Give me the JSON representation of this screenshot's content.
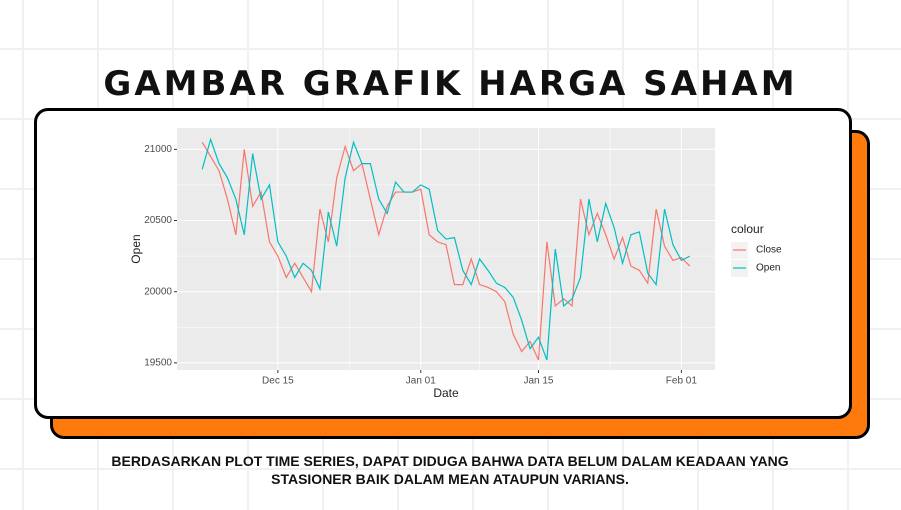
{
  "title": "GAMBAR GRAFIK HARGA SAHAM",
  "caption": "BERDASARKAN PLOT TIME SERIES, DAPAT DIDUGA BAHWA DATA BELUM DALAM KEADAAN YANG STASIONER BAIK DALAM MEAN ATAUPUN VARIANS.",
  "chart_data": {
    "type": "line",
    "x_label": "Date",
    "y_label": "Open",
    "legend_title": "colour",
    "x": [
      "Dec 06",
      "Dec 07",
      "Dec 08",
      "Dec 09",
      "Dec 10",
      "Dec 11",
      "Dec 12",
      "Dec 13",
      "Dec 14",
      "Dec 15",
      "Dec 16",
      "Dec 17",
      "Dec 18",
      "Dec 19",
      "Dec 20",
      "Dec 21",
      "Dec 22",
      "Dec 23",
      "Dec 24",
      "Dec 25",
      "Dec 26",
      "Dec 27",
      "Dec 28",
      "Dec 29",
      "Dec 30",
      "Dec 31",
      "Jan 01",
      "Jan 02",
      "Jan 03",
      "Jan 04",
      "Jan 05",
      "Jan 06",
      "Jan 07",
      "Jan 08",
      "Jan 09",
      "Jan 10",
      "Jan 11",
      "Jan 12",
      "Jan 13",
      "Jan 14",
      "Jan 15",
      "Jan 16",
      "Jan 17",
      "Jan 18",
      "Jan 19",
      "Jan 20",
      "Jan 21",
      "Jan 22",
      "Jan 23",
      "Jan 24",
      "Jan 25",
      "Jan 26",
      "Jan 27",
      "Jan 28",
      "Jan 29",
      "Jan 30",
      "Jan 31",
      "Feb 01",
      "Feb 02"
    ],
    "series": [
      {
        "name": "Close",
        "color": "#F8766D",
        "values": [
          21050,
          20950,
          20850,
          20650,
          20400,
          21000,
          20600,
          20700,
          20350,
          20250,
          20100,
          20200,
          20100,
          20000,
          20580,
          20350,
          20800,
          21020,
          20850,
          20900,
          20650,
          20400,
          20600,
          20700,
          20700,
          20700,
          20720,
          20400,
          20350,
          20330,
          20050,
          20050,
          20230,
          20050,
          20030,
          20000,
          19930,
          19700,
          19580,
          19650,
          19520,
          20350,
          19900,
          19950,
          19900,
          20650,
          20400,
          20550,
          20400,
          20230,
          20380,
          20180,
          20150,
          20060,
          20580,
          20320,
          20220,
          20240,
          20180
        ]
      },
      {
        "name": "Open",
        "color": "#00BFC4",
        "values": [
          20860,
          21070,
          20900,
          20800,
          20650,
          20400,
          20970,
          20650,
          20750,
          20350,
          20250,
          20100,
          20200,
          20150,
          20020,
          20560,
          20320,
          20800,
          21050,
          20900,
          20900,
          20650,
          20550,
          20770,
          20700,
          20700,
          20750,
          20720,
          20430,
          20370,
          20380,
          20150,
          20050,
          20230,
          20150,
          20060,
          20030,
          19960,
          19800,
          19600,
          19680,
          19520,
          20300,
          19900,
          19950,
          20100,
          20650,
          20350,
          20620,
          20450,
          20200,
          20400,
          20420,
          20130,
          20050,
          20580,
          20330,
          20220,
          20250
        ]
      }
    ],
    "xlim": [
      "Dec 03",
      "Feb 05"
    ],
    "xticks": [
      "Dec 15",
      "Jan 01",
      "Jan 15",
      "Feb 01"
    ],
    "ylim": [
      19450,
      21150
    ],
    "yticks": [
      19500,
      20000,
      20500,
      21000
    ],
    "grid": true
  }
}
